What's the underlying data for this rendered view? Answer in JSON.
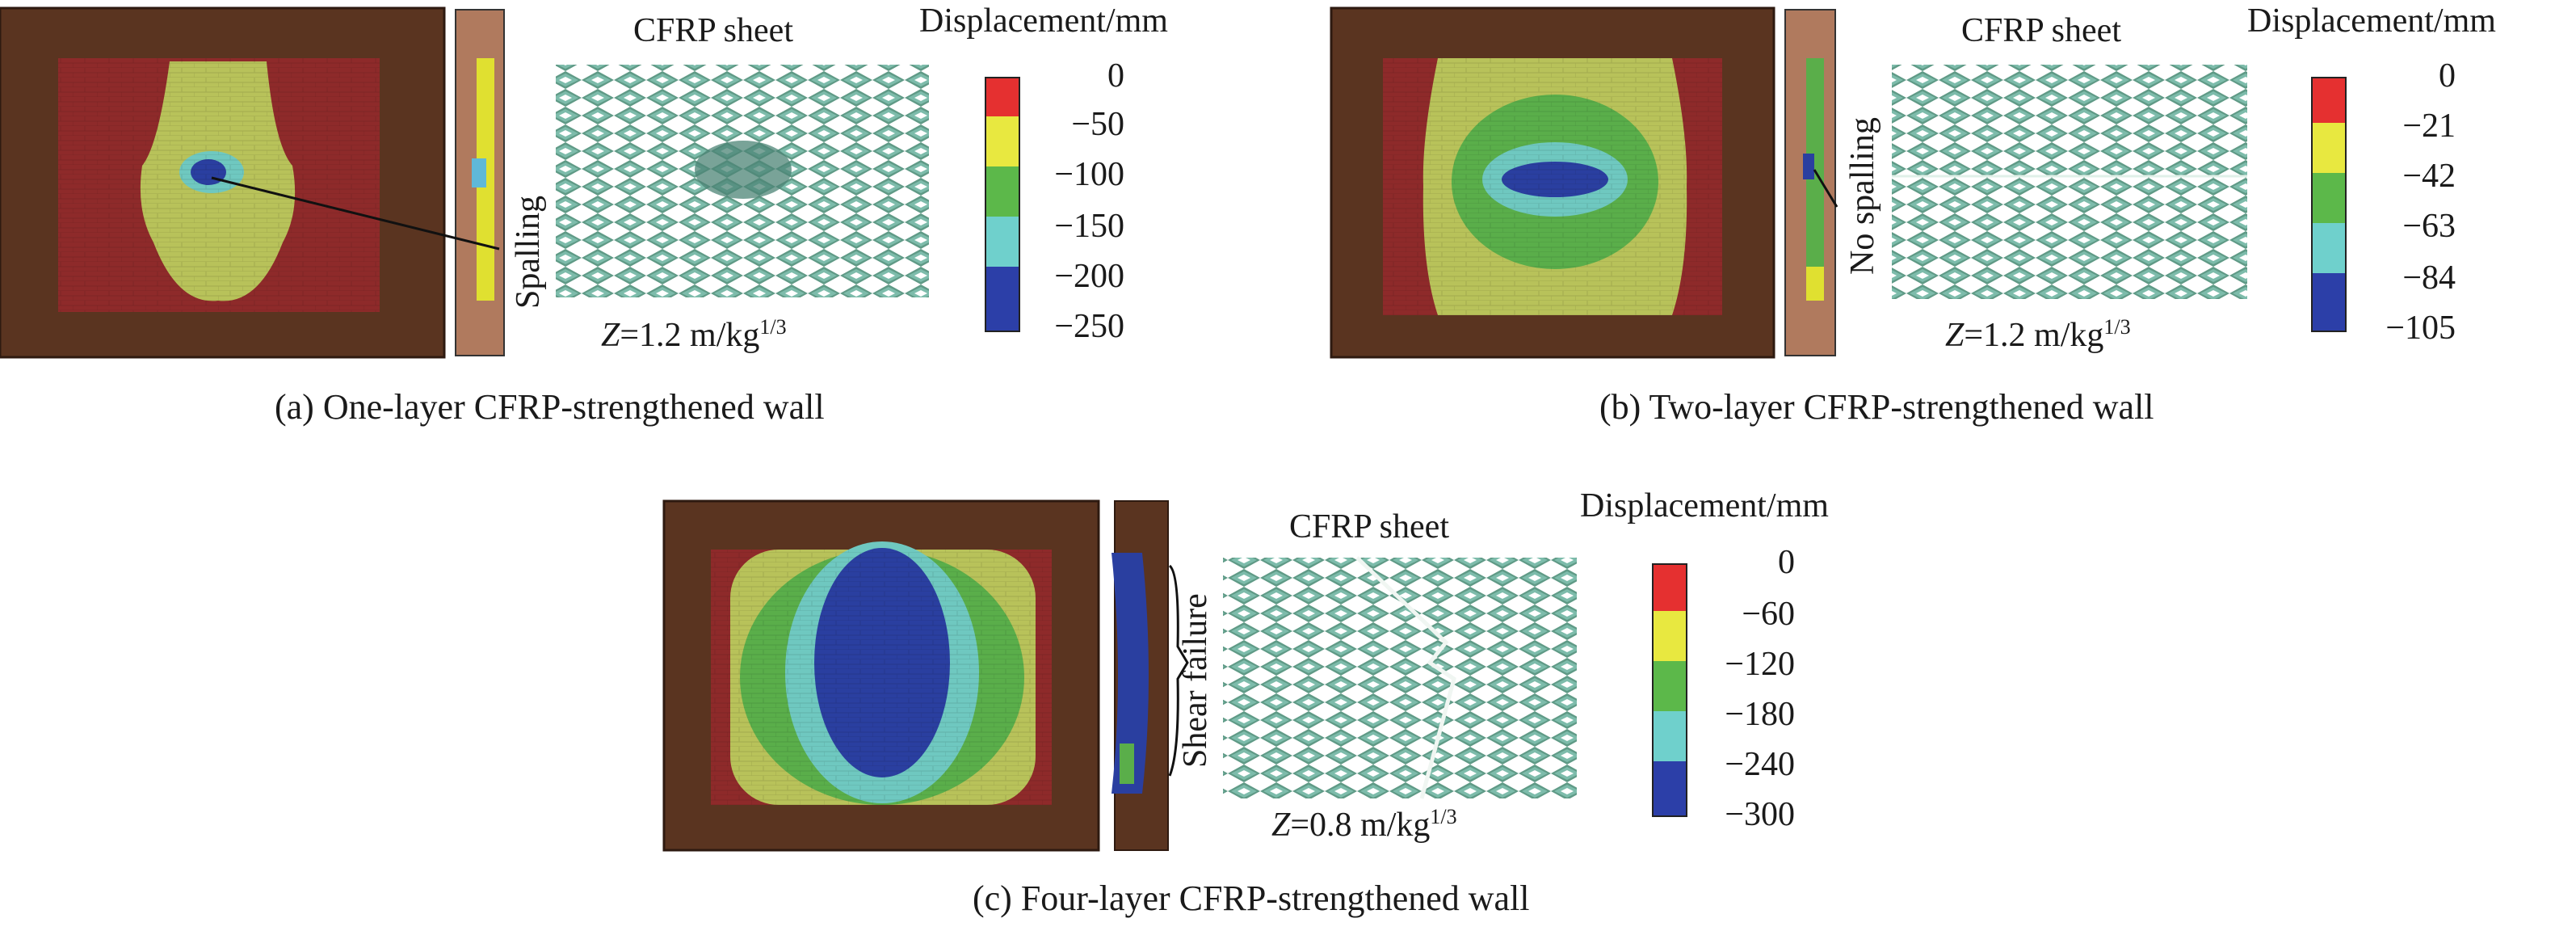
{
  "panels": {
    "a": {
      "caption": "(a) One-layer CFRP-strengthened wall",
      "sheet_title": "CFRP sheet",
      "legend_title": "Displacement/mm",
      "annotation": "Spalling",
      "z_label": "Z",
      "z_value": "=1.2 m/kg",
      "z_exp": "1/3",
      "ticks": [
        "0",
        "−50",
        "−100",
        "−150",
        "−200",
        "−250"
      ]
    },
    "b": {
      "caption": "(b) Two-layer CFRP-strengthened wall",
      "sheet_title": "CFRP sheet",
      "legend_title": "Displacement/mm",
      "annotation": "No spalling",
      "z_label": "Z",
      "z_value": "=1.2 m/kg",
      "z_exp": "1/3",
      "ticks": [
        "0",
        "−21",
        "−42",
        "−63",
        "−84",
        "−105"
      ]
    },
    "c": {
      "caption": "(c) Four-layer CFRP-strengthened wall",
      "sheet_title": "CFRP sheet",
      "legend_title": "Displacement/mm",
      "annotation": "Shear failure",
      "z_label": "Z",
      "z_value": "=0.8 m/kg",
      "z_exp": "1/3",
      "ticks": [
        "0",
        "−60",
        "−120",
        "−180",
        "−240",
        "−300"
      ]
    }
  },
  "colors": {
    "frame": "#5a3420",
    "wall_red": "#8e2a2a",
    "yellow_green": "#b8c25a",
    "cyan": "#6fc8c0",
    "blue": "#2a3fa0",
    "green": "#5aae4a",
    "legend": [
      "#e53030",
      "#e8e840",
      "#5cb84a",
      "#6fd0cc",
      "#2c3fa8"
    ]
  }
}
